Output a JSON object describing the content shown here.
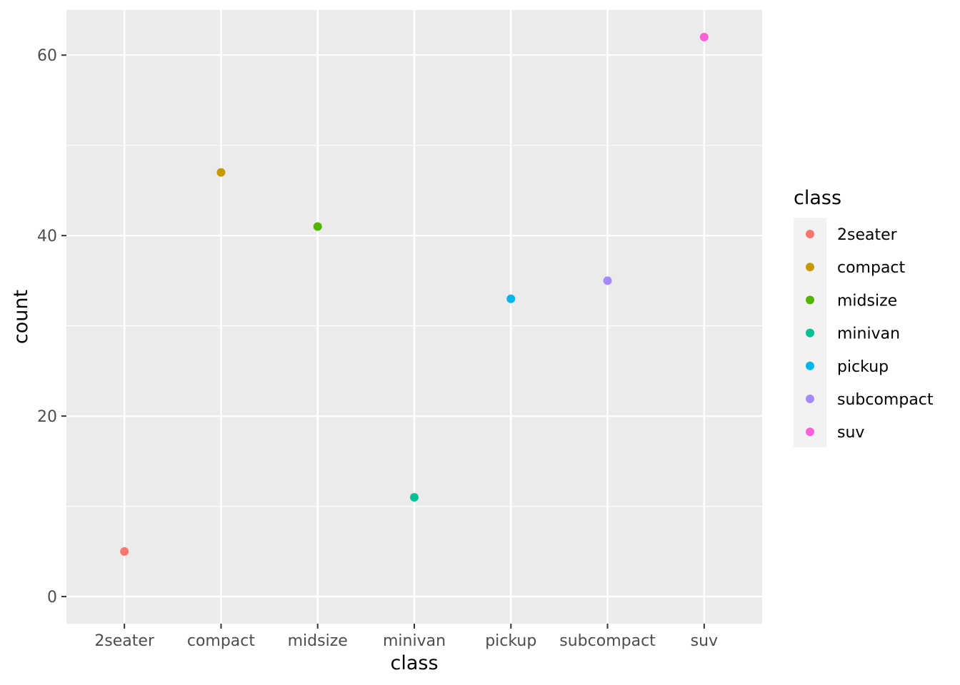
{
  "chart_data": {
    "type": "scatter",
    "title": "",
    "xlabel": "class",
    "ylabel": "count",
    "categories": [
      "2seater",
      "compact",
      "midsize",
      "minivan",
      "pickup",
      "subcompact",
      "suv"
    ],
    "values": [
      5,
      47,
      41,
      11,
      33,
      35,
      62
    ],
    "colors": [
      "#F8766D",
      "#C49A00",
      "#53B400",
      "#00C094",
      "#00B6EB",
      "#A58AFF",
      "#FB61D7"
    ],
    "ylim": [
      -3.0,
      65.0
    ],
    "yticks": [
      0,
      20,
      40,
      60
    ],
    "y_minor_ticks": [
      10,
      30,
      50
    ],
    "grid": true,
    "background": "#EBEBEB",
    "grid_color": "#FFFFFF",
    "legend": {
      "title": "class",
      "placement": "right",
      "entries": [
        "2seater",
        "compact",
        "midsize",
        "minivan",
        "pickup",
        "subcompact",
        "suv"
      ]
    }
  }
}
